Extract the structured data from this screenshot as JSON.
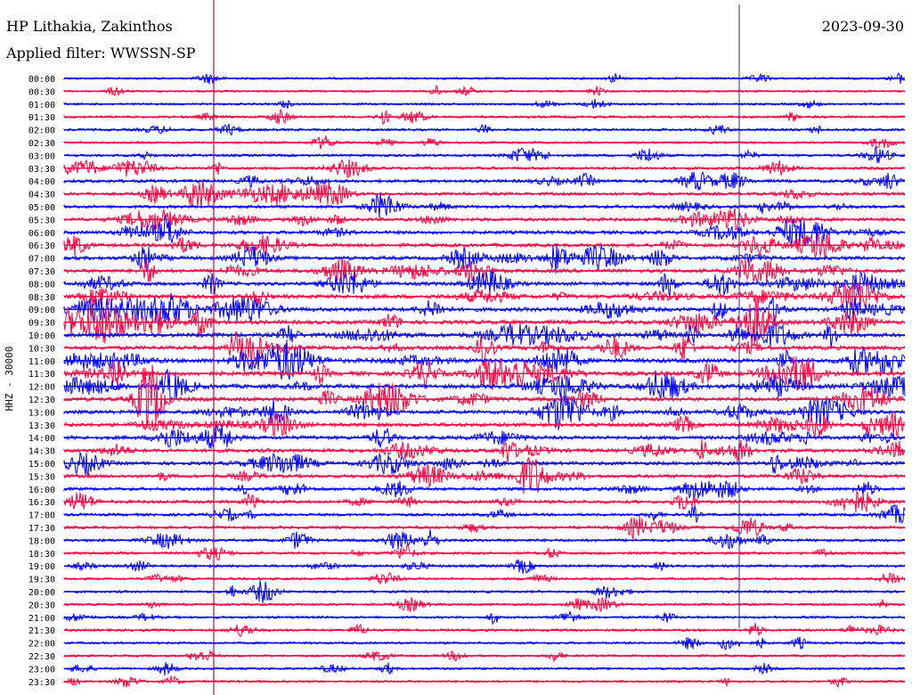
{
  "header": {
    "station": "HP Lithakia, Zakinthos",
    "filter": "Applied filter: WWSSN-SP",
    "date": "2023-09-30"
  },
  "chart_data": {
    "type": "line",
    "ylabel": "HHZ - 30000",
    "row_labels": [
      "00:00",
      "00:30",
      "01:00",
      "01:30",
      "02:00",
      "02:30",
      "03:00",
      "03:30",
      "04:00",
      "04:30",
      "05:00",
      "05:30",
      "06:00",
      "06:30",
      "07:00",
      "07:30",
      "08:00",
      "08:30",
      "09:00",
      "09:30",
      "10:00",
      "10:30",
      "11:00",
      "11:30",
      "12:00",
      "12:30",
      "13:00",
      "13:30",
      "14:00",
      "14:30",
      "15:00",
      "15:30",
      "16:00",
      "16:30",
      "17:00",
      "17:30",
      "18:00",
      "18:30",
      "19:00",
      "19:30",
      "20:00",
      "20:30",
      "21:00",
      "21:30",
      "22:00",
      "22:30",
      "23:00",
      "23:30"
    ],
    "colors": {
      "even": "#0000ff",
      "odd": "#ff0040",
      "marker": "#cc0044"
    },
    "row_activity": [
      0.25,
      0.2,
      0.25,
      0.35,
      0.35,
      0.3,
      0.4,
      0.5,
      0.6,
      0.6,
      0.6,
      0.7,
      0.7,
      0.7,
      0.8,
      0.8,
      0.8,
      0.9,
      0.9,
      0.9,
      0.9,
      0.9,
      1.0,
      1.0,
      1.0,
      0.9,
      0.8,
      0.8,
      0.8,
      0.8,
      0.7,
      0.7,
      0.6,
      0.6,
      0.5,
      0.5,
      0.5,
      0.4,
      0.4,
      0.35,
      0.35,
      0.35,
      0.35,
      0.35,
      0.3,
      0.3,
      0.3,
      0.3
    ]
  }
}
